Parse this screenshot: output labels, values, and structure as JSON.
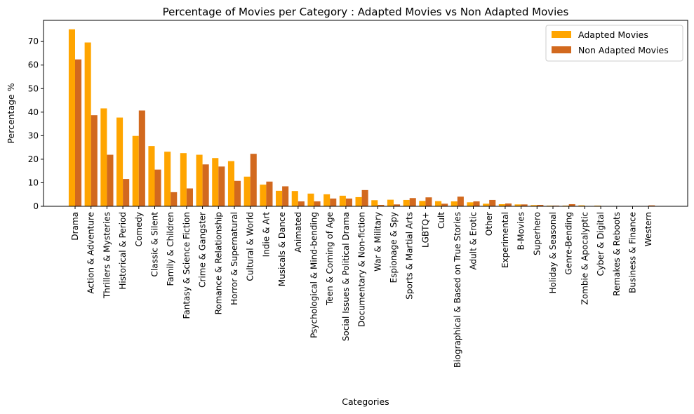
{
  "chart_data": {
    "type": "bar",
    "title": "Percentage of Movies per Category : Adapted Movies vs Non Adapted Movies",
    "xlabel": "Categories",
    "ylabel": "Percentage %",
    "ylim": [
      0,
      79
    ],
    "yticks": [
      0,
      10,
      20,
      30,
      40,
      50,
      60,
      70
    ],
    "grid": false,
    "legend_position": "top-right",
    "categories": [
      "Drama",
      "Action & Adventure",
      "Thrillers & Mysteries",
      "Historical & Period",
      "Comedy",
      "Classic & Silent",
      "Family & Children",
      "Fantasy & Science Fiction",
      "Crime & Gangster",
      "Romance & Relationship",
      "Horror & Supernatural",
      "Cultural & World",
      "Indie & Art",
      "Musicals & Dance",
      "Animated",
      "Psychological & Mind-bending",
      "Teen & Coming of Age",
      "Social Issues & Political Drama",
      "Documentary & Non-fiction",
      "War & Military",
      "Espionage & Spy",
      "Sports & Martial Arts",
      "LGBTQ+",
      "Cult",
      "Biographical & Based on True Stories",
      "Adult & Erotic",
      "Other",
      "Experimental",
      "B-Movies",
      "Superhero",
      "Holiday & Seasonal",
      "Genre-Bending",
      "Zombie & Apocalyptic",
      "Cyber & Digital",
      "Remakes & Reboots",
      "Business & Finance",
      "Western"
    ],
    "series": [
      {
        "name": "Adapted Movies",
        "color": "#FFA500",
        "values": [
          75.2,
          69.6,
          41.6,
          37.7,
          29.9,
          25.6,
          23.2,
          22.6,
          21.9,
          20.5,
          19.2,
          12.6,
          9.2,
          6.6,
          6.5,
          5.4,
          5.1,
          4.5,
          3.9,
          2.6,
          2.8,
          2.7,
          2.3,
          2.2,
          2.1,
          1.7,
          1.1,
          0.9,
          0.8,
          0.5,
          0.3,
          0.3,
          0.4,
          0.3,
          0.1,
          0.1,
          0.1
        ]
      },
      {
        "name": "Non Adapted Movies",
        "color": "#D2691E",
        "values": [
          62.4,
          38.7,
          21.9,
          11.6,
          40.7,
          15.6,
          6.0,
          7.6,
          17.8,
          16.9,
          10.8,
          22.3,
          10.5,
          8.5,
          2.1,
          2.1,
          3.3,
          3.3,
          6.9,
          0.6,
          0.8,
          3.5,
          3.8,
          1.1,
          4.1,
          2.1,
          2.7,
          1.2,
          0.8,
          0.6,
          0.3,
          0.9,
          0.1,
          0.1,
          0.1,
          0.1,
          0.4
        ]
      }
    ]
  }
}
